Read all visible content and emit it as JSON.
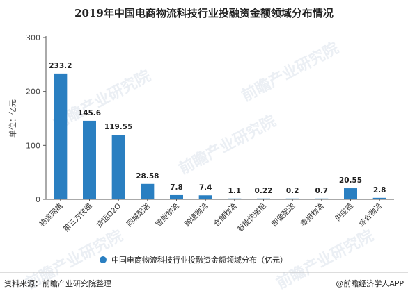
{
  "chart_data": {
    "type": "bar",
    "title": "2019年中国电商物流科技行业投融资金额领域分布情况",
    "ylabel": "单位：亿元",
    "ylim": [
      0,
      300
    ],
    "yticks": [
      0,
      100,
      200,
      300
    ],
    "categories": [
      "物流网络",
      "第三方快递",
      "货运O2O",
      "同城配送",
      "智能物流",
      "跨境物流",
      "仓储物流",
      "智能快递柜",
      "即使配送",
      "零担物流",
      "供应链",
      "综合物流"
    ],
    "series": [
      {
        "name": "中国电商物流科技行业投融资金额领域分布（亿元）",
        "values": [
          233.2,
          145.6,
          119.55,
          28.58,
          7.8,
          7.4,
          1.1,
          0.22,
          0.2,
          0.7,
          20.55,
          2.8
        ],
        "labels": [
          "233.2",
          "145.6",
          "119.55",
          "28.58",
          "7.8",
          "7.4",
          "1.1",
          "0.22",
          "0.2",
          "0.7",
          "20.55",
          "2.8"
        ]
      }
    ],
    "bar_color": "#2a7fc1",
    "grid": false,
    "legend_position": "bottom"
  },
  "footer": {
    "source": "资料来源：前瞻产业研究院整理",
    "brand": "@前瞻经济学人APP"
  },
  "watermark": "前瞻产业研究院"
}
